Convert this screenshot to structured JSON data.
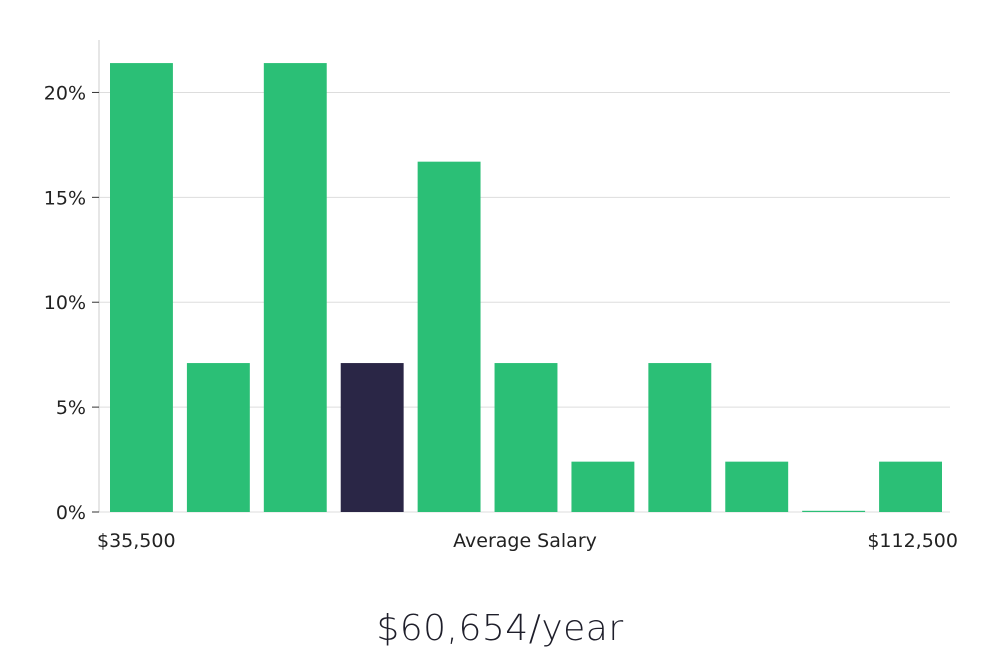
{
  "chart_data": {
    "type": "bar",
    "title": "",
    "xlabel": "Average Salary",
    "ylabel": "",
    "x_min_label": "$35,500",
    "x_max_label": "$112,500",
    "ylim": [
      0,
      22.5
    ],
    "yticks": [
      0,
      5,
      10,
      15,
      20
    ],
    "ytick_labels": [
      "0%",
      "5%",
      "10%",
      "15%",
      "20%"
    ],
    "grid": true,
    "values": [
      21.4,
      7.1,
      21.4,
      7.1,
      16.7,
      7.1,
      2.4,
      7.1,
      2.4,
      0,
      2.4
    ],
    "highlight_index": 3,
    "colors": {
      "bar": "#2bbf76",
      "highlight": "#2a2646",
      "grid": "#dddddd",
      "axis": "#cccccc"
    }
  },
  "summary": {
    "salary_text": "$60,654/year"
  }
}
